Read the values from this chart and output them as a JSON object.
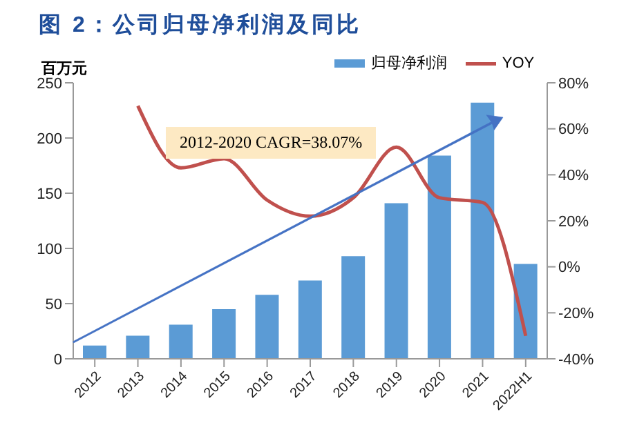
{
  "chart_data": {
    "type": "bar",
    "title": "图 2：公司归母净利润及同比",
    "ylabel": "百万元",
    "categories": [
      "2012",
      "2013",
      "2014",
      "2015",
      "2016",
      "2017",
      "2018",
      "2019",
      "2020",
      "2021",
      "2022H1"
    ],
    "series": [
      {
        "name": "归母净利润",
        "color": "#5b9bd5",
        "values": [
          12,
          21,
          31,
          45,
          58,
          71,
          93,
          141,
          184,
          232,
          86
        ]
      },
      {
        "name": "YOY",
        "type": "line",
        "axis": "y2",
        "color": "#c0504d",
        "values": [
          null,
          70,
          43,
          47,
          29,
          22,
          30,
          52,
          30,
          28,
          -30
        ]
      }
    ],
    "ylim": [
      0,
      250
    ],
    "yticks": [
      0,
      50,
      100,
      150,
      200,
      250
    ],
    "y2lim": [
      -40,
      80
    ],
    "y2ticks": [
      {
        "value": -40,
        "label": "-40%"
      },
      {
        "value": -20,
        "label": "-20%"
      },
      {
        "value": 0,
        "label": "0%"
      },
      {
        "value": 20,
        "label": "20%"
      },
      {
        "value": 40,
        "label": "40%"
      },
      {
        "value": 60,
        "label": "60%"
      },
      {
        "value": 80,
        "label": "80%"
      }
    ],
    "annotations": [
      "2012-2020  CAGR=38.07%"
    ],
    "legend": "top",
    "grid": false,
    "marker": "none"
  }
}
